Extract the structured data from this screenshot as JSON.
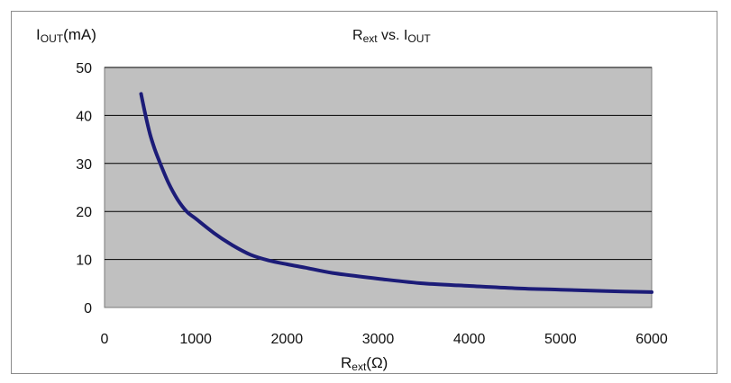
{
  "chart_data": {
    "type": "line",
    "title": {
      "main": "R",
      "sub1": "ext",
      "mid": " vs. I",
      "sub2": "OUT"
    },
    "ylabel": {
      "main": "I",
      "sub": "OUT",
      "tail": "(mA)"
    },
    "xlabel": {
      "main": "R",
      "sub": "ext",
      "tail": "(Ω)"
    },
    "xlim": [
      0,
      6000
    ],
    "ylim": [
      0,
      50
    ],
    "x_ticks": [
      "0",
      "1000",
      "2000",
      "3000",
      "4000",
      "5000",
      "6000"
    ],
    "y_ticks": [
      "0",
      "10",
      "20",
      "30",
      "40",
      "50"
    ],
    "grid": "horizontal",
    "plot_background": "#c0c0c0",
    "line_color": "#1c1c78",
    "series": [
      {
        "x": [
          400,
          450,
          500,
          550,
          600,
          700,
          800,
          900,
          1000,
          1200,
          1400,
          1600,
          1800,
          2000,
          2200,
          2500,
          3000,
          3500,
          4000,
          4500,
          5000,
          5500,
          6000
        ],
        "y": [
          44.5,
          40,
          36,
          33,
          30.5,
          26,
          22.5,
          20,
          18.5,
          15.5,
          13,
          11,
          9.8,
          9,
          8.3,
          7.2,
          6,
          5,
          4.5,
          4,
          3.7,
          3.4,
          3.2
        ]
      }
    ]
  }
}
